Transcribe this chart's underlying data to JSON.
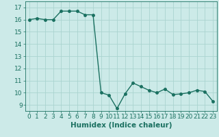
{
  "x": [
    0,
    1,
    2,
    3,
    4,
    5,
    6,
    7,
    8,
    9,
    10,
    11,
    12,
    13,
    14,
    15,
    16,
    17,
    18,
    19,
    20,
    21,
    22,
    23
  ],
  "y": [
    16.0,
    16.1,
    16.0,
    16.0,
    16.7,
    16.7,
    16.7,
    16.4,
    16.4,
    10.0,
    9.8,
    8.7,
    9.9,
    10.8,
    10.5,
    10.2,
    10.0,
    10.3,
    9.85,
    9.9,
    10.0,
    10.2,
    10.1,
    9.3
  ],
  "line_color": "#1a7060",
  "marker_color": "#1a7060",
  "bg_color": "#cceae8",
  "grid_color": "#aad4d0",
  "xlabel": "Humidex (Indice chaleur)",
  "ylim": [
    8.5,
    17.5
  ],
  "xlim": [
    -0.5,
    23.5
  ],
  "yticks": [
    9,
    10,
    11,
    12,
    13,
    14,
    15,
    16,
    17
  ],
  "xticks": [
    0,
    1,
    2,
    3,
    4,
    5,
    6,
    7,
    8,
    9,
    10,
    11,
    12,
    13,
    14,
    15,
    16,
    17,
    18,
    19,
    20,
    21,
    22,
    23
  ],
  "xlabel_fontsize": 7.5,
  "tick_fontsize": 6.5,
  "marker_size": 2.5,
  "line_width": 1.0
}
